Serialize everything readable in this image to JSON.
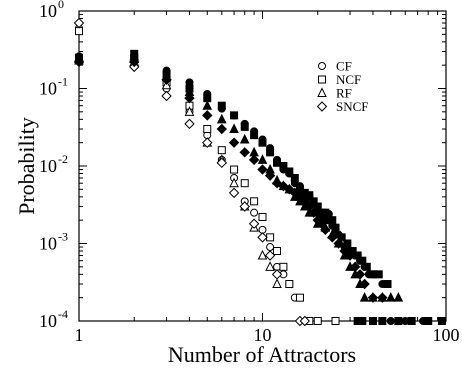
{
  "chart_data": {
    "type": "scatter",
    "title": "",
    "xlabel": "Number of Attractors",
    "ylabel": "Probability",
    "xscale": "log",
    "yscale": "log",
    "xlim": [
      1,
      100
    ],
    "ylim": [
      0.0001,
      1
    ],
    "grid": false,
    "legend_position": "top-right",
    "x_ticks": [
      {
        "value": 1,
        "label": "1"
      },
      {
        "value": 10,
        "label": "10"
      },
      {
        "value": 100,
        "label": "100"
      }
    ],
    "y_ticks": [
      {
        "value": 0.0001,
        "base": "10",
        "exp": "-4"
      },
      {
        "value": 0.001,
        "base": "10",
        "exp": "-3"
      },
      {
        "value": 0.01,
        "base": "10",
        "exp": "-2"
      },
      {
        "value": 0.1,
        "base": "10",
        "exp": "-1"
      },
      {
        "value": 1,
        "base": "10",
        "exp": "0"
      }
    ],
    "series": [
      {
        "name": "CF",
        "marker": "circle",
        "points": [
          [
            1,
            0.6
          ],
          [
            2,
            0.25
          ],
          [
            3,
            0.1
          ],
          [
            4,
            0.05
          ],
          [
            5,
            0.025
          ],
          [
            6,
            0.012
          ],
          [
            7,
            0.007
          ],
          [
            8,
            0.0035
          ],
          [
            9,
            0.0025
          ],
          [
            10,
            0.0015
          ],
          [
            11,
            0.0009
          ],
          [
            12,
            0.0005
          ],
          [
            13,
            0.0004
          ],
          [
            14,
            0.0003
          ],
          [
            15,
            0.0002
          ]
        ]
      },
      {
        "name": "NCF",
        "marker": "square",
        "points": [
          [
            1,
            0.55
          ],
          [
            2,
            0.25
          ],
          [
            3,
            0.12
          ],
          [
            4,
            0.06
          ],
          [
            5,
            0.03
          ],
          [
            6,
            0.016
          ],
          [
            7,
            0.009
          ],
          [
            8,
            0.006
          ],
          [
            9,
            0.0035
          ],
          [
            10,
            0.0022
          ],
          [
            11,
            0.0012
          ],
          [
            12,
            0.0008
          ],
          [
            13,
            0.0005
          ],
          [
            14,
            0.0003
          ],
          [
            16,
            0.0002
          ],
          [
            18,
            0.0001
          ],
          [
            20,
            0.0001
          ],
          [
            25,
            0.0001
          ]
        ]
      },
      {
        "name": "RF",
        "marker": "triangle",
        "points": [
          [
            1,
            0.25
          ],
          [
            2,
            0.22
          ],
          [
            3,
            0.11
          ],
          [
            4,
            0.05
          ],
          [
            5,
            0.02
          ],
          [
            6,
            0.012
          ],
          [
            7,
            0.006
          ],
          [
            8,
            0.003
          ],
          [
            9,
            0.0016
          ],
          [
            10,
            0.0007
          ],
          [
            11,
            0.0005
          ],
          [
            12,
            0.0003
          ]
        ]
      },
      {
        "name": "SNCF",
        "marker": "diamond",
        "points": [
          [
            1,
            0.7
          ],
          [
            2,
            0.19
          ],
          [
            3,
            0.08
          ],
          [
            4,
            0.035
          ],
          [
            5,
            0.02
          ],
          [
            6,
            0.011
          ],
          [
            7,
            0.0045
          ],
          [
            8,
            0.003
          ],
          [
            9,
            0.0018
          ],
          [
            10,
            0.0012
          ],
          [
            11,
            0.0007
          ],
          [
            12,
            0.0004
          ],
          [
            16,
            0.0001
          ],
          [
            17,
            0.0001
          ]
        ]
      },
      {
        "name": "",
        "marker": "circle-filled",
        "points": [
          [
            1,
            0.26
          ],
          [
            2,
            0.27
          ],
          [
            3,
            0.17
          ],
          [
            4,
            0.12
          ],
          [
            5,
            0.085
          ],
          [
            6,
            0.055
          ],
          [
            7,
            0.045
          ],
          [
            8,
            0.035
          ],
          [
            9,
            0.028
          ],
          [
            10,
            0.022
          ],
          [
            11,
            0.017
          ],
          [
            12,
            0.012
          ],
          [
            13,
            0.009
          ],
          [
            14,
            0.008
          ],
          [
            15,
            0.006
          ],
          [
            16,
            0.0055
          ],
          [
            17,
            0.0045
          ],
          [
            18,
            0.004
          ],
          [
            19,
            0.0032
          ],
          [
            20,
            0.0026
          ],
          [
            21,
            0.0023
          ],
          [
            22,
            0.002
          ],
          [
            23,
            0.0024
          ],
          [
            24,
            0.0017
          ],
          [
            25,
            0.0015
          ],
          [
            26,
            0.0013
          ],
          [
            27,
            0.0012
          ],
          [
            28,
            0.0009
          ],
          [
            30,
            0.0008
          ],
          [
            32,
            0.0007
          ],
          [
            34,
            0.0006
          ],
          [
            36,
            0.0005
          ],
          [
            38,
            0.0004
          ],
          [
            40,
            0.0004
          ],
          [
            45,
            0.0003
          ],
          [
            50,
            0.0001
          ],
          [
            60,
            0.0001
          ],
          [
            75,
            0.0001
          ]
        ]
      },
      {
        "name": "",
        "marker": "square-filled",
        "points": [
          [
            1,
            0.25
          ],
          [
            2,
            0.28
          ],
          [
            3,
            0.15
          ],
          [
            4,
            0.1
          ],
          [
            5,
            0.075
          ],
          [
            6,
            0.06
          ],
          [
            7,
            0.045
          ],
          [
            8,
            0.032
          ],
          [
            9,
            0.025
          ],
          [
            10,
            0.02
          ],
          [
            11,
            0.015
          ],
          [
            12,
            0.011
          ],
          [
            13,
            0.01
          ],
          [
            14,
            0.0085
          ],
          [
            15,
            0.007
          ],
          [
            16,
            0.005
          ],
          [
            17,
            0.0045
          ],
          [
            18,
            0.0042
          ],
          [
            19,
            0.0035
          ],
          [
            20,
            0.003
          ],
          [
            21,
            0.0025
          ],
          [
            22,
            0.0025
          ],
          [
            23,
            0.002
          ],
          [
            24,
            0.002
          ],
          [
            25,
            0.0016
          ],
          [
            27,
            0.0012
          ],
          [
            29,
            0.001
          ],
          [
            31,
            0.0008
          ],
          [
            33,
            0.0007
          ],
          [
            35,
            0.0006
          ],
          [
            37,
            0.0005
          ],
          [
            40,
            0.0004
          ],
          [
            43,
            0.0004
          ],
          [
            48,
            0.0003
          ],
          [
            33,
            0.0001
          ],
          [
            35,
            0.0001
          ],
          [
            40,
            0.0001
          ],
          [
            45,
            0.0001
          ],
          [
            55,
            0.0001
          ],
          [
            65,
            0.0001
          ],
          [
            80,
            0.0001
          ],
          [
            95,
            0.0001
          ]
        ]
      },
      {
        "name": "",
        "marker": "triangle-filled",
        "points": [
          [
            1,
            0.23
          ],
          [
            2,
            0.26
          ],
          [
            3,
            0.14
          ],
          [
            4,
            0.09
          ],
          [
            5,
            0.06
          ],
          [
            6,
            0.04
          ],
          [
            7,
            0.03
          ],
          [
            8,
            0.022
          ],
          [
            9,
            0.015
          ],
          [
            10,
            0.012
          ],
          [
            11,
            0.009
          ],
          [
            12,
            0.0065
          ],
          [
            13,
            0.0055
          ],
          [
            14,
            0.005
          ],
          [
            15,
            0.004
          ],
          [
            16,
            0.0035
          ],
          [
            17,
            0.003
          ],
          [
            18,
            0.0025
          ],
          [
            19,
            0.0025
          ],
          [
            20,
            0.0018
          ],
          [
            22,
            0.0016
          ],
          [
            24,
            0.0013
          ],
          [
            26,
            0.001
          ],
          [
            28,
            0.0007
          ],
          [
            30,
            0.0005
          ],
          [
            32,
            0.0004
          ],
          [
            34,
            0.0003
          ],
          [
            36,
            0.0002
          ],
          [
            40,
            0.0002
          ],
          [
            45,
            0.0002
          ],
          [
            50,
            0.0002
          ],
          [
            55,
            0.0002
          ]
        ]
      },
      {
        "name": "",
        "marker": "diamond-filled",
        "points": [
          [
            1,
            0.22
          ],
          [
            2,
            0.22
          ],
          [
            3,
            0.13
          ],
          [
            4,
            0.075
          ],
          [
            5,
            0.045
          ],
          [
            6,
            0.03
          ],
          [
            7,
            0.02
          ],
          [
            8,
            0.015
          ],
          [
            9,
            0.012
          ],
          [
            10,
            0.009
          ],
          [
            11,
            0.0075
          ],
          [
            12,
            0.006
          ],
          [
            13,
            0.0055
          ],
          [
            14,
            0.005
          ],
          [
            15,
            0.0045
          ],
          [
            16,
            0.004
          ],
          [
            17,
            0.0035
          ],
          [
            18,
            0.003
          ],
          [
            19,
            0.0025
          ],
          [
            20,
            0.002
          ],
          [
            21,
            0.0018
          ],
          [
            22,
            0.0015
          ],
          [
            24,
            0.0012
          ],
          [
            26,
            0.001
          ],
          [
            28,
            0.0008
          ],
          [
            30,
            0.0007
          ],
          [
            32,
            0.0005
          ],
          [
            34,
            0.0004
          ],
          [
            36,
            0.0003
          ],
          [
            40,
            0.0002
          ],
          [
            45,
            0.0002
          ]
        ]
      }
    ],
    "legend": [
      {
        "label": "CF",
        "marker": "circle"
      },
      {
        "label": "NCF",
        "marker": "square"
      },
      {
        "label": "RF",
        "marker": "triangle"
      },
      {
        "label": "SNCF",
        "marker": "diamond"
      }
    ]
  }
}
